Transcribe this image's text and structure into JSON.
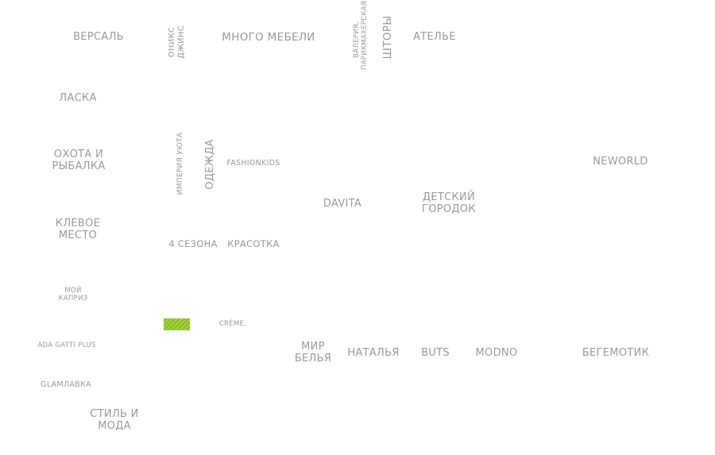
{
  "stores": {
    "versal": "ВЕРСАЛЬ",
    "oniks_1": "ОНИКС",
    "oniks_2": "ДЖИНС",
    "mnogo_mebeli": "МНОГО МЕБЕЛИ",
    "valeriya_1": "ВАЛЕРИЯ,",
    "valeriya_2": "ПАРИКМАХЕРСКАЯ",
    "shtory": "ШТОРЫ",
    "atelye": "АТЕЛЬЕ",
    "laska": "ЛАСКА",
    "okhota_1": "ОХОТА И",
    "okhota_2": "РЫБАЛКА",
    "imperiya": "ИМПЕРИЯ УЮТА",
    "odezhda": "ОДЕЖДА",
    "fashionkids": "FASHIONKIDS",
    "neworld": "NEWORLD",
    "davita": "DAVITA",
    "detskiy_1": "ДЕТСКИЙ",
    "detskiy_2": "ГОРОДОК",
    "klevoe_1": "КЛЕВОЕ",
    "klevoe_2": "МЕСТО",
    "chetyre_sezona": "4 СЕЗОНА",
    "krasotka": "КРАСОТКА",
    "moy_kapriz_1": "МОЙ",
    "moy_kapriz_2": "КАПРИЗ",
    "creme": "CRÈME.",
    "ada_gatti": "ADA GATTI PLUS",
    "mir_belya_1": "МИР",
    "mir_belya_2": "БЕЛЬЯ",
    "natalya": "НАТАЛЬЯ",
    "buts": "BUTS",
    "modno": "MODNO",
    "begemotik": "БЕГЕМОТИК",
    "glamlavka": "GLAMЛАВКА",
    "stil_1": "СТИЛЬ И",
    "stil_2": "МОДА"
  },
  "highlight_color": "#8dc21f",
  "label_color": "#9a9a9a"
}
